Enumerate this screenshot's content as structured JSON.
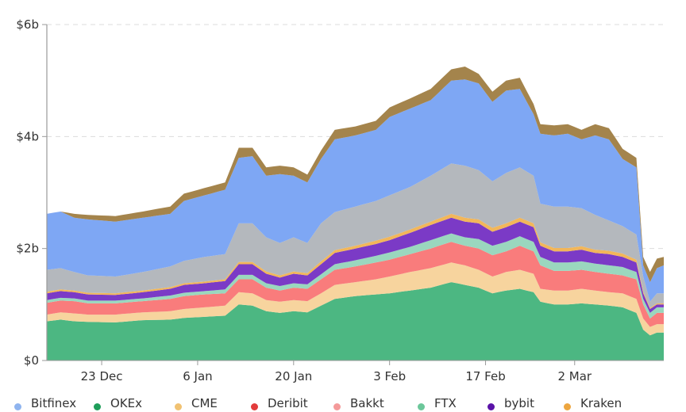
{
  "chart_data": {
    "type": "area",
    "stacked": true,
    "title": "",
    "xlabel": "",
    "ylabel": "",
    "ylim": [
      0,
      6
    ],
    "y_unit": "$b",
    "y_ticks": [
      {
        "value": 0,
        "label": "$0"
      },
      {
        "value": 2,
        "label": "$2b"
      },
      {
        "value": 4,
        "label": "$4b"
      },
      {
        "value": 6,
        "label": "$6b"
      }
    ],
    "x_range_days": [
      0,
      90
    ],
    "x_start_date": "15 Dec",
    "x_end_date": "15 Mar",
    "x_ticks": [
      {
        "day": 8,
        "label": "23 Dec"
      },
      {
        "day": 22,
        "label": "6 Jan"
      },
      {
        "day": 36,
        "label": "20 Jan"
      },
      {
        "day": 50,
        "label": "3 Feb"
      },
      {
        "day": 64,
        "label": "17 Feb"
      },
      {
        "day": 77,
        "label": "2 Mar"
      }
    ],
    "grid": "horizontal-dashed",
    "legend_position": "bottom",
    "stack_order_bottom_to_top": [
      "OKEx",
      "CME",
      "Deribit+Bakkt",
      "FTX",
      "bybit",
      "Kraken",
      "gray",
      "Bitfinex",
      "brown"
    ],
    "stacked_tops_keypoints": {
      "days": [
        0,
        2,
        4,
        6,
        10,
        14,
        18,
        20,
        23,
        26,
        28,
        30,
        32,
        34,
        36,
        38,
        40,
        42,
        45,
        48,
        50,
        53,
        56,
        59,
        61,
        63,
        65,
        67,
        69,
        71,
        72,
        74,
        76,
        78,
        80,
        82,
        84,
        86,
        87,
        88,
        89,
        90
      ],
      "OKEx": [
        0.7,
        0.73,
        0.7,
        0.69,
        0.68,
        0.72,
        0.73,
        0.76,
        0.78,
        0.8,
        1.0,
        0.98,
        0.88,
        0.85,
        0.88,
        0.86,
        0.98,
        1.1,
        1.15,
        1.18,
        1.2,
        1.25,
        1.3,
        1.4,
        1.35,
        1.3,
        1.2,
        1.25,
        1.28,
        1.22,
        1.05,
        1.0,
        1.0,
        1.02,
        1.0,
        0.98,
        0.95,
        0.85,
        0.55,
        0.45,
        0.5,
        0.5
      ],
      "CME": [
        0.82,
        0.86,
        0.84,
        0.82,
        0.82,
        0.86,
        0.88,
        0.92,
        0.95,
        0.98,
        1.22,
        1.2,
        1.08,
        1.05,
        1.08,
        1.06,
        1.2,
        1.35,
        1.4,
        1.45,
        1.5,
        1.58,
        1.65,
        1.75,
        1.7,
        1.62,
        1.5,
        1.58,
        1.62,
        1.55,
        1.28,
        1.25,
        1.25,
        1.28,
        1.25,
        1.22,
        1.2,
        1.1,
        0.75,
        0.6,
        0.65,
        0.65
      ],
      "Bakkt": [
        1.03,
        1.07,
        1.06,
        1.02,
        1.02,
        1.06,
        1.1,
        1.15,
        1.18,
        1.2,
        1.45,
        1.45,
        1.3,
        1.25,
        1.3,
        1.28,
        1.45,
        1.62,
        1.68,
        1.75,
        1.8,
        1.9,
        2.0,
        2.12,
        2.05,
        2.0,
        1.88,
        1.95,
        2.05,
        1.95,
        1.7,
        1.6,
        1.6,
        1.62,
        1.58,
        1.55,
        1.52,
        1.45,
        1.0,
        0.75,
        0.85,
        0.85
      ],
      "FTX": [
        1.08,
        1.12,
        1.11,
        1.07,
        1.07,
        1.11,
        1.16,
        1.21,
        1.24,
        1.27,
        1.53,
        1.53,
        1.38,
        1.33,
        1.38,
        1.36,
        1.54,
        1.72,
        1.79,
        1.87,
        1.93,
        2.03,
        2.15,
        2.27,
        2.2,
        2.17,
        2.05,
        2.12,
        2.22,
        2.12,
        1.85,
        1.75,
        1.75,
        1.77,
        1.73,
        1.7,
        1.67,
        1.58,
        1.1,
        0.85,
        0.95,
        0.95
      ],
      "bybit": [
        1.2,
        1.24,
        1.22,
        1.18,
        1.17,
        1.22,
        1.28,
        1.35,
        1.38,
        1.42,
        1.72,
        1.72,
        1.55,
        1.48,
        1.55,
        1.52,
        1.72,
        1.92,
        2.0,
        2.08,
        2.15,
        2.28,
        2.42,
        2.55,
        2.48,
        2.45,
        2.3,
        2.38,
        2.48,
        2.38,
        2.05,
        1.95,
        1.95,
        1.98,
        1.92,
        1.9,
        1.85,
        1.75,
        1.2,
        0.92,
        1.0,
        1.0
      ],
      "Kraken": [
        1.23,
        1.27,
        1.25,
        1.21,
        1.2,
        1.25,
        1.31,
        1.38,
        1.41,
        1.45,
        1.76,
        1.76,
        1.59,
        1.52,
        1.59,
        1.56,
        1.77,
        1.97,
        2.05,
        2.14,
        2.21,
        2.34,
        2.48,
        2.62,
        2.55,
        2.52,
        2.37,
        2.45,
        2.55,
        2.45,
        2.11,
        2.01,
        2.01,
        2.04,
        1.98,
        1.96,
        1.91,
        1.8,
        1.23,
        0.94,
        1.02,
        1.02
      ],
      "gray": [
        1.62,
        1.65,
        1.58,
        1.52,
        1.5,
        1.58,
        1.68,
        1.78,
        1.85,
        1.9,
        2.45,
        2.45,
        2.2,
        2.1,
        2.2,
        2.1,
        2.45,
        2.65,
        2.75,
        2.85,
        2.95,
        3.1,
        3.3,
        3.52,
        3.48,
        3.4,
        3.2,
        3.35,
        3.45,
        3.3,
        2.8,
        2.75,
        2.75,
        2.72,
        2.6,
        2.5,
        2.4,
        2.25,
        1.5,
        1.05,
        1.2,
        1.2
      ],
      "Bitfinex": [
        2.62,
        2.66,
        2.55,
        2.52,
        2.48,
        2.55,
        2.62,
        2.85,
        2.95,
        3.05,
        3.62,
        3.65,
        3.3,
        3.33,
        3.3,
        3.18,
        3.6,
        3.95,
        4.02,
        4.12,
        4.35,
        4.5,
        4.65,
        5.0,
        5.02,
        4.95,
        4.62,
        4.82,
        4.85,
        4.4,
        4.05,
        4.02,
        4.05,
        3.95,
        4.02,
        3.95,
        3.6,
        3.45,
        1.7,
        1.4,
        1.65,
        1.7
      ],
      "brown": [
        2.62,
        2.66,
        2.62,
        2.6,
        2.58,
        2.66,
        2.75,
        2.98,
        3.08,
        3.18,
        3.8,
        3.8,
        3.45,
        3.48,
        3.45,
        3.32,
        3.75,
        4.12,
        4.18,
        4.28,
        4.52,
        4.68,
        4.85,
        5.2,
        5.25,
        5.12,
        4.8,
        5.0,
        5.05,
        4.58,
        4.22,
        4.2,
        4.22,
        4.12,
        4.22,
        4.15,
        3.78,
        3.62,
        1.85,
        1.58,
        1.82,
        1.85
      ]
    },
    "series": [
      {
        "name": "OKEx",
        "color": "#4cb782",
        "legend": true
      },
      {
        "name": "CME",
        "color": "#f7d49e",
        "legend": true
      },
      {
        "name": "Deribit",
        "color": "#f46e6e",
        "legend": true
      },
      {
        "name": "Bakkt",
        "color": "#f97c7c",
        "legend": true
      },
      {
        "name": "FTX",
        "color": "#9ad7be",
        "legend": true
      },
      {
        "name": "bybit",
        "color": "#7b3ac6",
        "legend": true
      },
      {
        "name": "Kraken",
        "color": "#f2b65a",
        "legend": true
      },
      {
        "name": "",
        "color": "#b4b8bd",
        "legend": false
      },
      {
        "name": "Bitfinex",
        "color": "#7ea7f4",
        "legend": true
      },
      {
        "name": "",
        "color": "#a4844c",
        "legend": false
      }
    ],
    "legend_items": [
      {
        "name": "Bitfinex",
        "color": "#8fb4ef"
      },
      {
        "name": "OKEx",
        "color": "#1f9e5a"
      },
      {
        "name": "CME",
        "color": "#f1c272"
      },
      {
        "name": "Deribit",
        "color": "#e23b3b"
      },
      {
        "name": "Bakkt",
        "color": "#f49a9a"
      },
      {
        "name": "FTX",
        "color": "#6cc79a"
      },
      {
        "name": "bybit",
        "color": "#5a12a8"
      },
      {
        "name": "Kraken",
        "color": "#eda640"
      }
    ]
  }
}
